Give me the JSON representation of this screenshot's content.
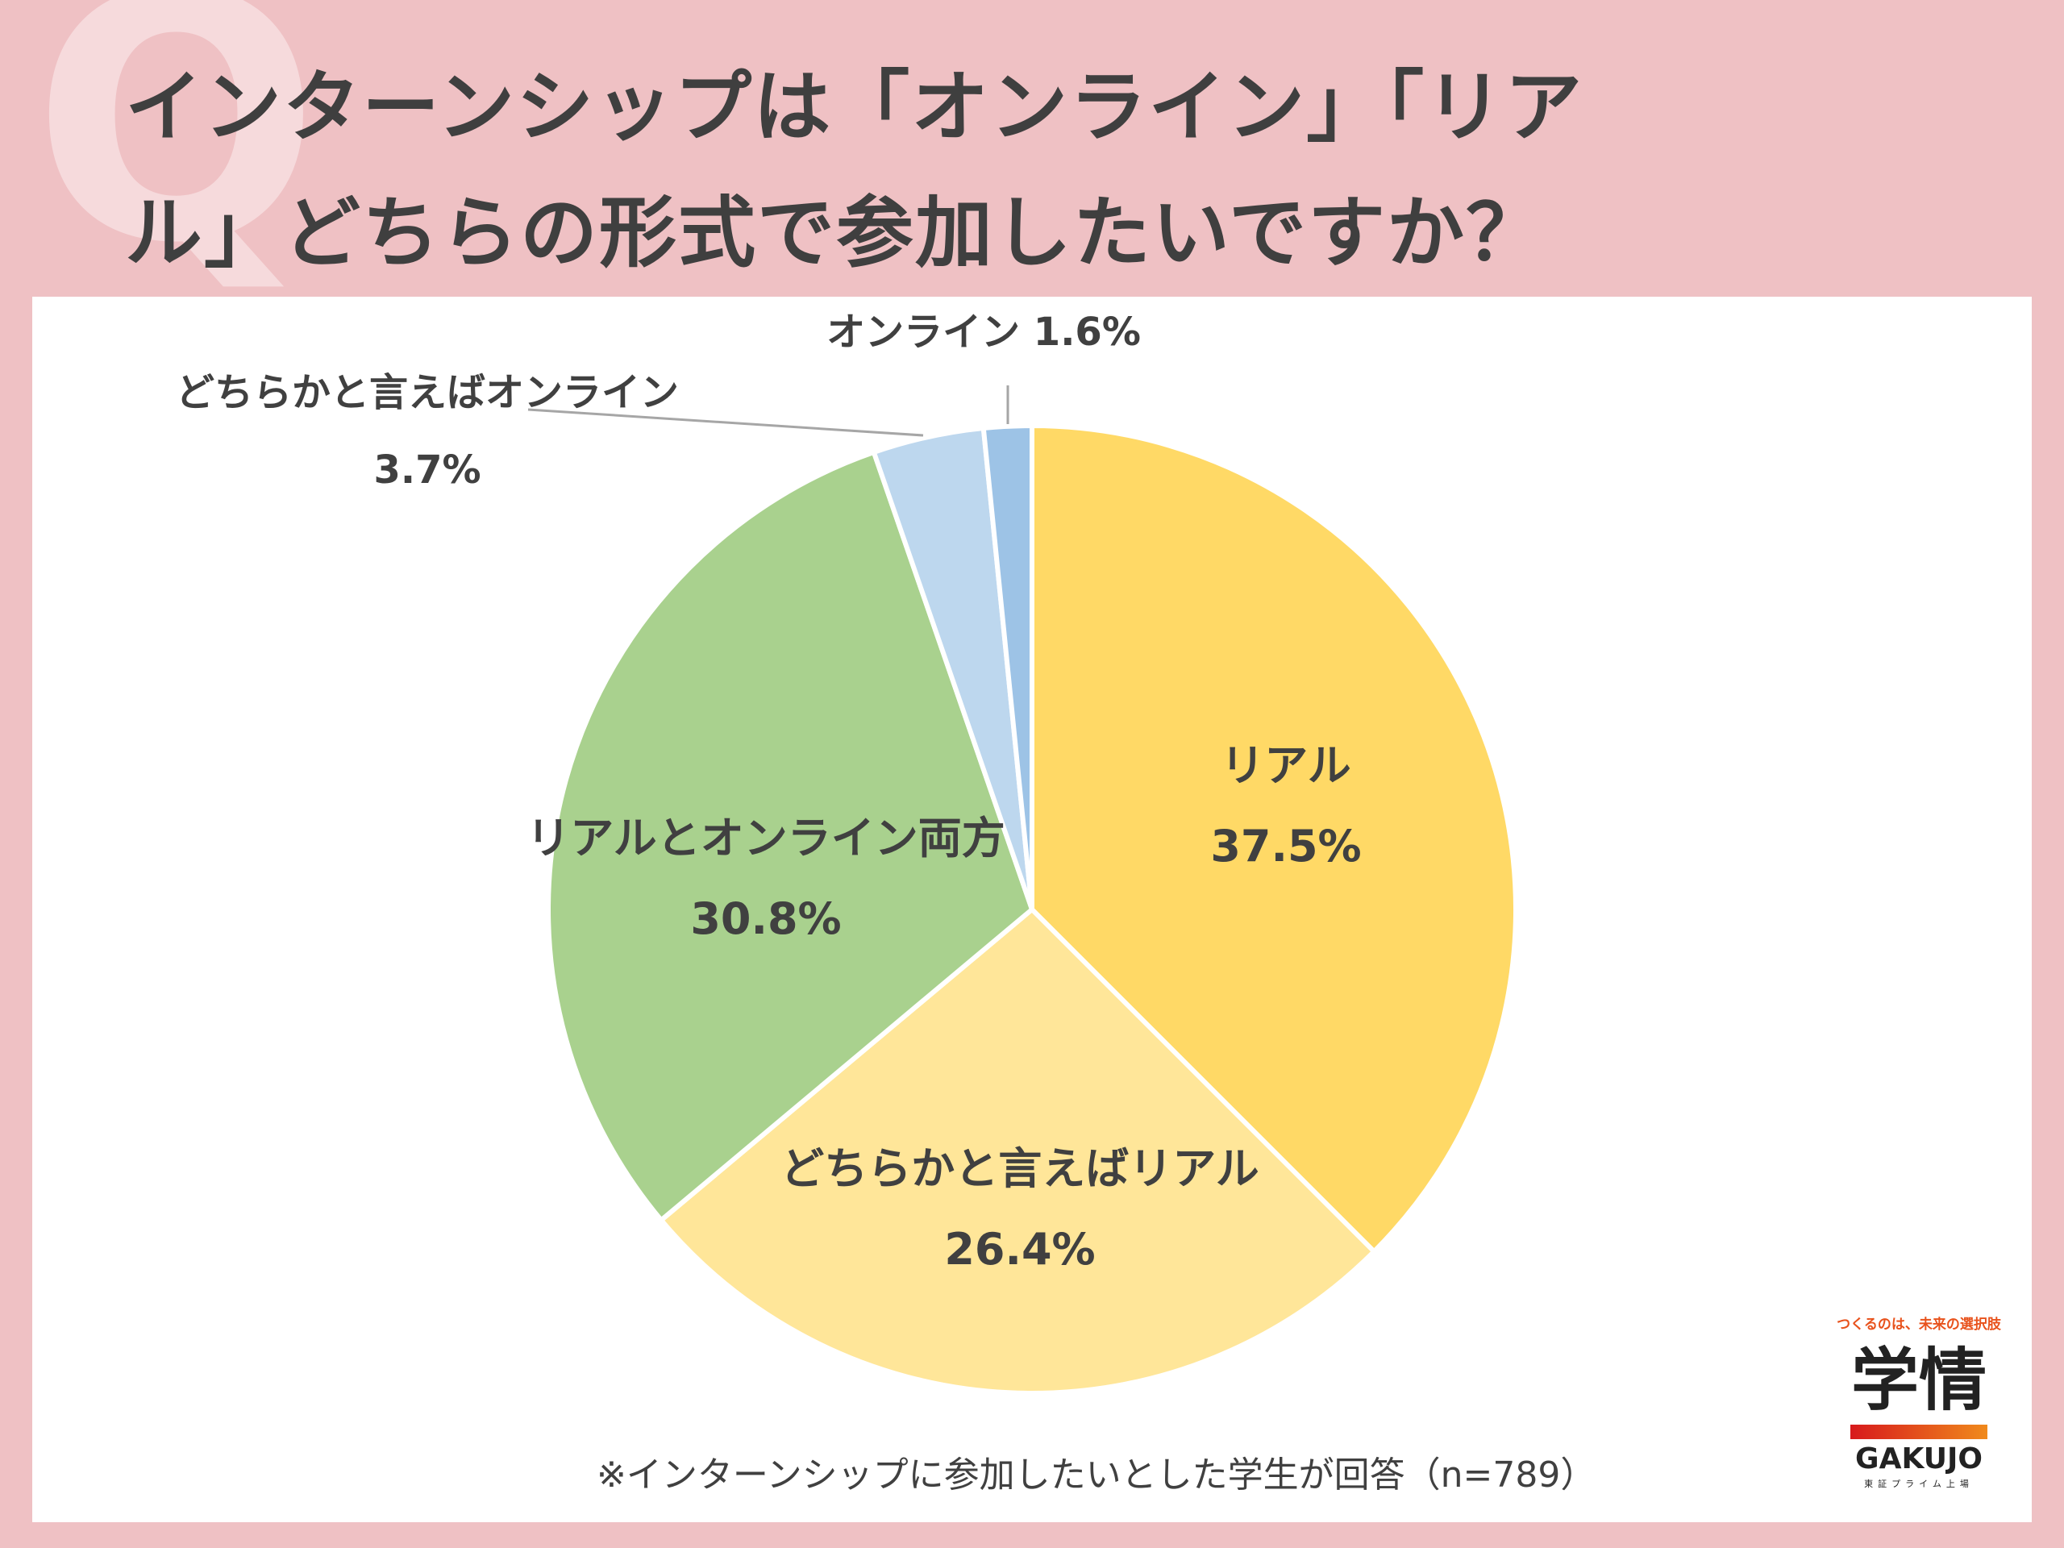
{
  "header": {
    "q_mark": "Q",
    "title_line1": "インターンシップは「オンライン」「リア",
    "title_line2": "ル」どちらの形式で参加したいですか？"
  },
  "chart_data": {
    "type": "pie",
    "unit": "%",
    "slices": [
      {
        "label": "リアル",
        "value": 37.5,
        "value_label": "37.5%",
        "color": "#ffd966"
      },
      {
        "label": "どちらかと言えばリアル",
        "value": 26.4,
        "value_label": "26.4%",
        "color": "#ffe699"
      },
      {
        "label": "リアルとオンライン両方",
        "value": 30.8,
        "value_label": "30.8%",
        "color": "#a9d18e"
      },
      {
        "label": "どちらかと言えばオンライン",
        "value": 3.7,
        "value_label": "3.7%",
        "color": "#bdd7ee"
      },
      {
        "label": "オンライン",
        "value": 1.6,
        "value_label": "1.6%",
        "color": "#9dc3e6"
      }
    ]
  },
  "footnote": "※インターンシップに参加したいとした学生が回答（n=789）",
  "logo": {
    "tagline": "つくるのは、未来の選択肢",
    "kanji": "学情",
    "brand": "GAKUJO",
    "sub": "東証プライム上場"
  }
}
